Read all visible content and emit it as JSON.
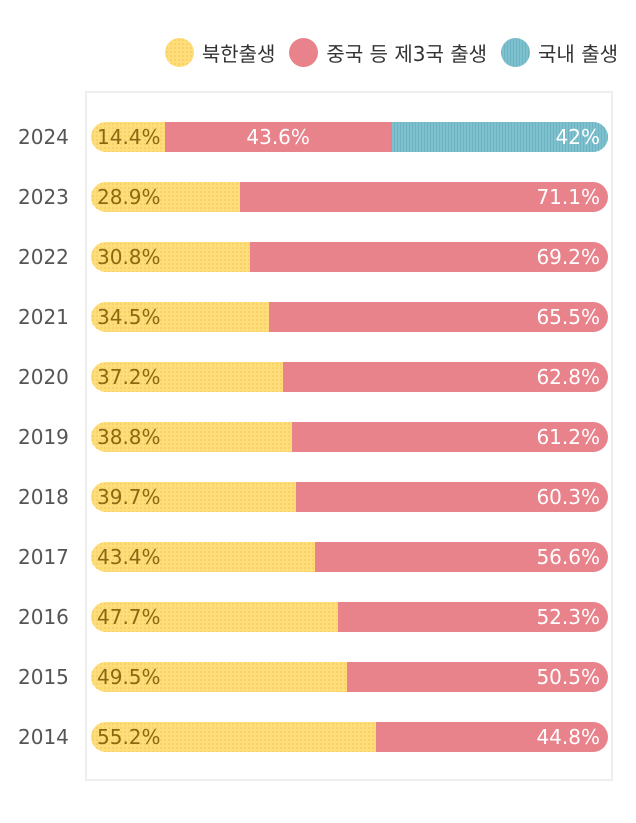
{
  "chart_data": {
    "type": "bar",
    "orientation": "horizontal",
    "stacked": true,
    "normalized": true,
    "legend_position": "top-right",
    "categories": [
      "2024",
      "2023",
      "2022",
      "2021",
      "2020",
      "2019",
      "2018",
      "2017",
      "2016",
      "2015",
      "2014"
    ],
    "series": [
      {
        "name": "북한출생",
        "color": "#FFDD7A",
        "values": [
          14.4,
          28.9,
          30.8,
          34.5,
          37.2,
          38.8,
          39.7,
          43.4,
          47.7,
          49.5,
          55.2
        ],
        "labels": [
          "14.4%",
          "28.9%",
          "30.8%",
          "34.5%",
          "37.2%",
          "38.8%",
          "39.7%",
          "43.4%",
          "47.7%",
          "49.5%",
          "55.2%"
        ]
      },
      {
        "name": "중국 등 제3국 출생",
        "color": "#E8838C",
        "values": [
          43.6,
          71.1,
          69.2,
          65.5,
          62.8,
          61.2,
          60.3,
          56.6,
          52.3,
          50.5,
          44.8
        ],
        "labels": [
          "43.6%",
          "71.1%",
          "69.2%",
          "65.5%",
          "62.8%",
          "61.2%",
          "60.3%",
          "56.6%",
          "52.3%",
          "50.5%",
          "44.8%"
        ]
      },
      {
        "name": "국내 출생",
        "color": "#7DC0CE",
        "values": [
          42,
          null,
          null,
          null,
          null,
          null,
          null,
          null,
          null,
          null,
          null
        ],
        "labels": [
          "42%",
          null,
          null,
          null,
          null,
          null,
          null,
          null,
          null,
          null,
          null
        ]
      }
    ]
  }
}
